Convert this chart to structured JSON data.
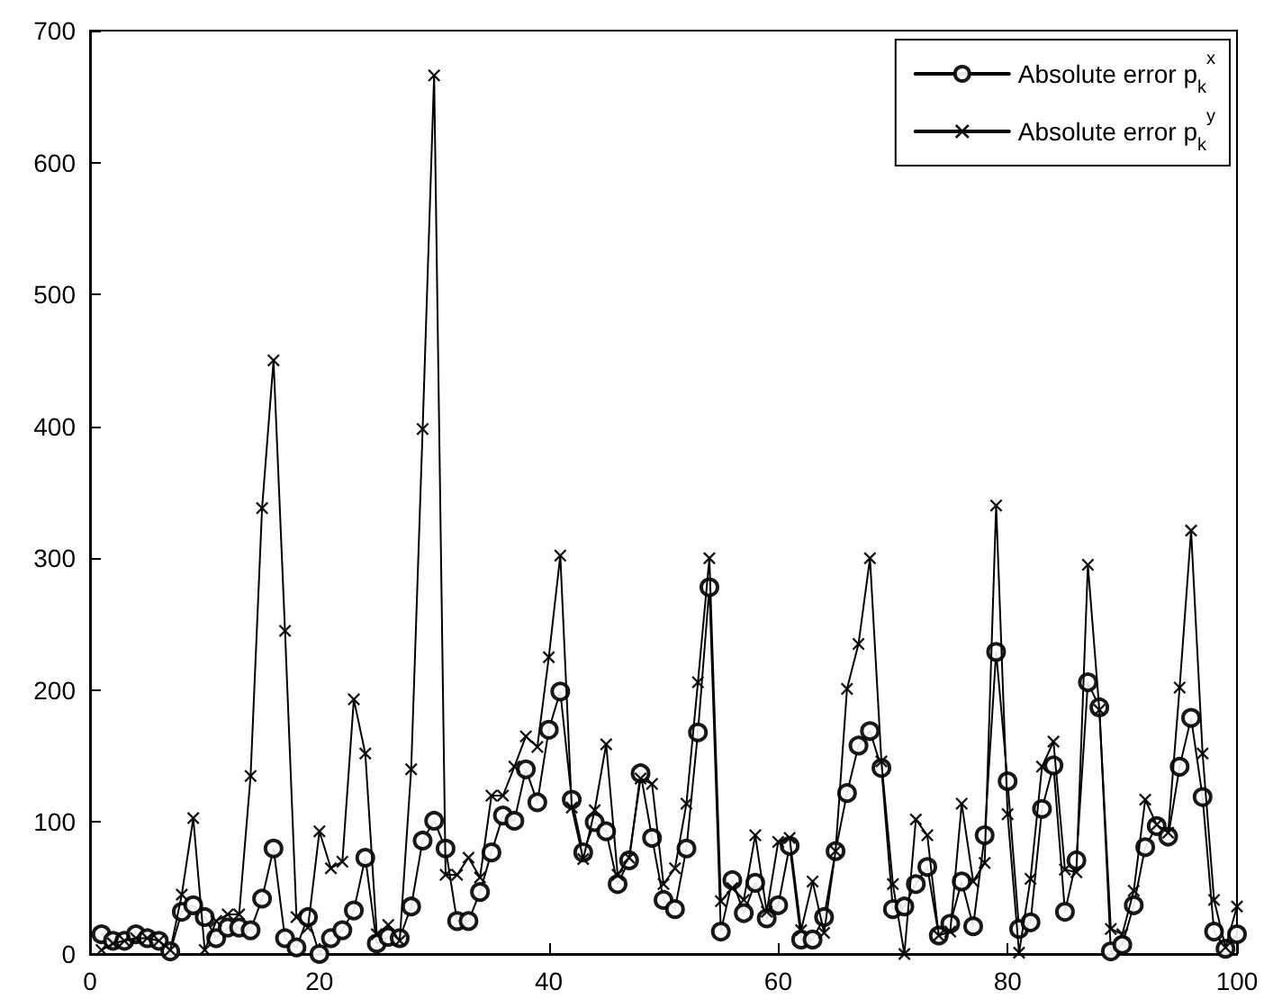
{
  "chart_data": {
    "type": "line",
    "x": [
      1,
      2,
      3,
      4,
      5,
      6,
      7,
      8,
      9,
      10,
      11,
      12,
      13,
      14,
      15,
      16,
      17,
      18,
      19,
      20,
      21,
      22,
      23,
      24,
      25,
      26,
      27,
      28,
      29,
      30,
      31,
      32,
      33,
      34,
      35,
      36,
      37,
      38,
      39,
      40,
      41,
      42,
      43,
      44,
      45,
      46,
      47,
      48,
      49,
      50,
      51,
      52,
      53,
      54,
      55,
      56,
      57,
      58,
      59,
      60,
      61,
      62,
      63,
      64,
      65,
      66,
      67,
      68,
      69,
      70,
      71,
      72,
      73,
      74,
      75,
      76,
      77,
      78,
      79,
      80,
      81,
      82,
      83,
      84,
      85,
      86,
      87,
      88,
      89,
      90,
      91,
      92,
      93,
      94,
      95,
      96,
      97,
      98,
      99,
      100
    ],
    "series": [
      {
        "name": "Absolute error p$_{k}$$^{x}$",
        "color": "#000000",
        "marker": "circle",
        "values": [
          15,
          10,
          10,
          15,
          12,
          10,
          2,
          32,
          37,
          28,
          12,
          20,
          20,
          18,
          42,
          80,
          12,
          5,
          28,
          0,
          12,
          18,
          33,
          73,
          8,
          13,
          12,
          36,
          86,
          101,
          80,
          25,
          25,
          47,
          77,
          105,
          101,
          140,
          115,
          170,
          199,
          117,
          77,
          100,
          93,
          53,
          71,
          137,
          88,
          41,
          34,
          80,
          168,
          278,
          17,
          56,
          31,
          54,
          27,
          37,
          82,
          11,
          11,
          28,
          78,
          122,
          158,
          169,
          141,
          34,
          36,
          53,
          66,
          14,
          23,
          55,
          21,
          90,
          229,
          131,
          19,
          24,
          110,
          143,
          32,
          71,
          206,
          187,
          2,
          7,
          37,
          81,
          97,
          89,
          142,
          179,
          119,
          17,
          4,
          15
        ]
      },
      {
        "name": "Absolute error p$_{k}$$^{y}$",
        "color": "#000000",
        "marker": "cross",
        "values": [
          3,
          8,
          10,
          12,
          12,
          10,
          3,
          45,
          103,
          3,
          25,
          30,
          30,
          135,
          338,
          450,
          245,
          28,
          20,
          93,
          65,
          70,
          193,
          152,
          15,
          22,
          10,
          140,
          398,
          666,
          60,
          60,
          73,
          58,
          120,
          120,
          142,
          165,
          157,
          225,
          302,
          111,
          72,
          109,
          159,
          60,
          73,
          133,
          129,
          53,
          65,
          114,
          206,
          300,
          40,
          50,
          41,
          90,
          32,
          85,
          88,
          18,
          55,
          16,
          78,
          201,
          235,
          300,
          146,
          53,
          0,
          102,
          90,
          14,
          17,
          114,
          55,
          69,
          340,
          106,
          1,
          57,
          142,
          161,
          64,
          62,
          295,
          185,
          19,
          15,
          48,
          117,
          98,
          92,
          202,
          321,
          152,
          41,
          5,
          36
        ]
      }
    ],
    "xlim": [
      0,
      100
    ],
    "xticks": [
      0,
      20,
      40,
      60,
      80,
      100
    ],
    "ylim": [
      0,
      700
    ],
    "yticks": [
      0,
      100,
      200,
      300,
      400,
      500,
      600,
      700
    ],
    "grid": false,
    "legend": "top right",
    "line_style": "solid"
  }
}
